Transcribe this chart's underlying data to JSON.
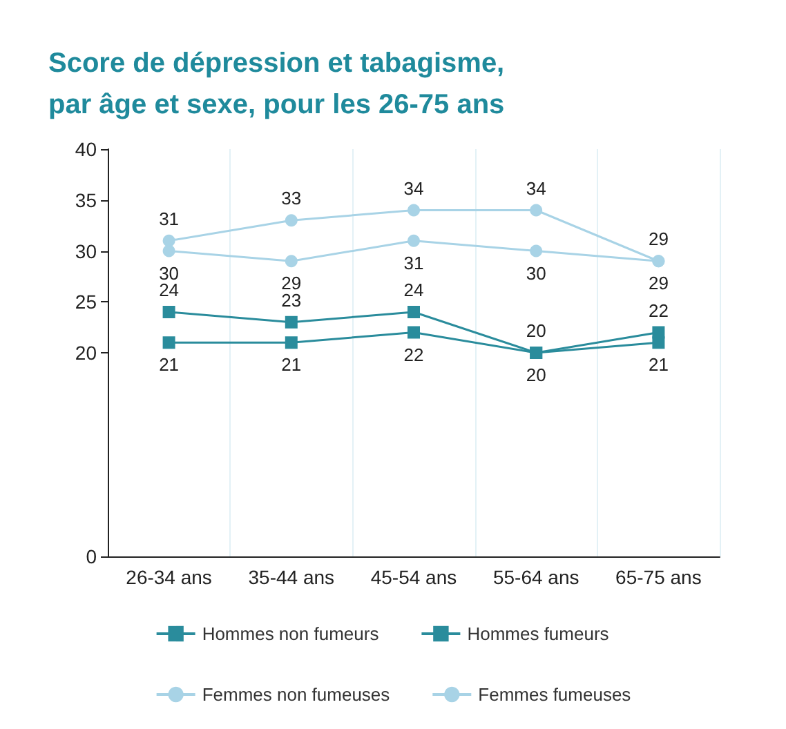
{
  "chart_data": {
    "type": "line",
    "title": "Score de dépression et tabagisme,\npar âge et sexe, pour les 26-75 ans",
    "categories": [
      "26-34 ans",
      "35-44 ans",
      "45-54 ans",
      "55-64 ans",
      "65-75 ans"
    ],
    "series": [
      {
        "name": "Hommes non fumeurs",
        "color": "#2a8c9c",
        "marker": "square",
        "values": [
          21,
          21,
          22,
          20,
          21
        ]
      },
      {
        "name": "Hommes fumeurs",
        "color": "#2a8c9c",
        "marker": "square",
        "values": [
          24,
          23,
          24,
          20,
          22
        ]
      },
      {
        "name": "Femmes non fumeuses",
        "color": "#a8d3e6",
        "marker": "circle",
        "values": [
          30,
          29,
          31,
          30,
          29
        ]
      },
      {
        "name": "Femmes fumeuses",
        "color": "#a8d3e6",
        "marker": "circle",
        "values": [
          31,
          33,
          34,
          34,
          29
        ]
      }
    ],
    "ylim": [
      0,
      40
    ],
    "yticks": [
      0,
      20,
      25,
      30,
      35,
      40
    ],
    "grid": "x",
    "legend": "bottom",
    "data_labels": true
  }
}
